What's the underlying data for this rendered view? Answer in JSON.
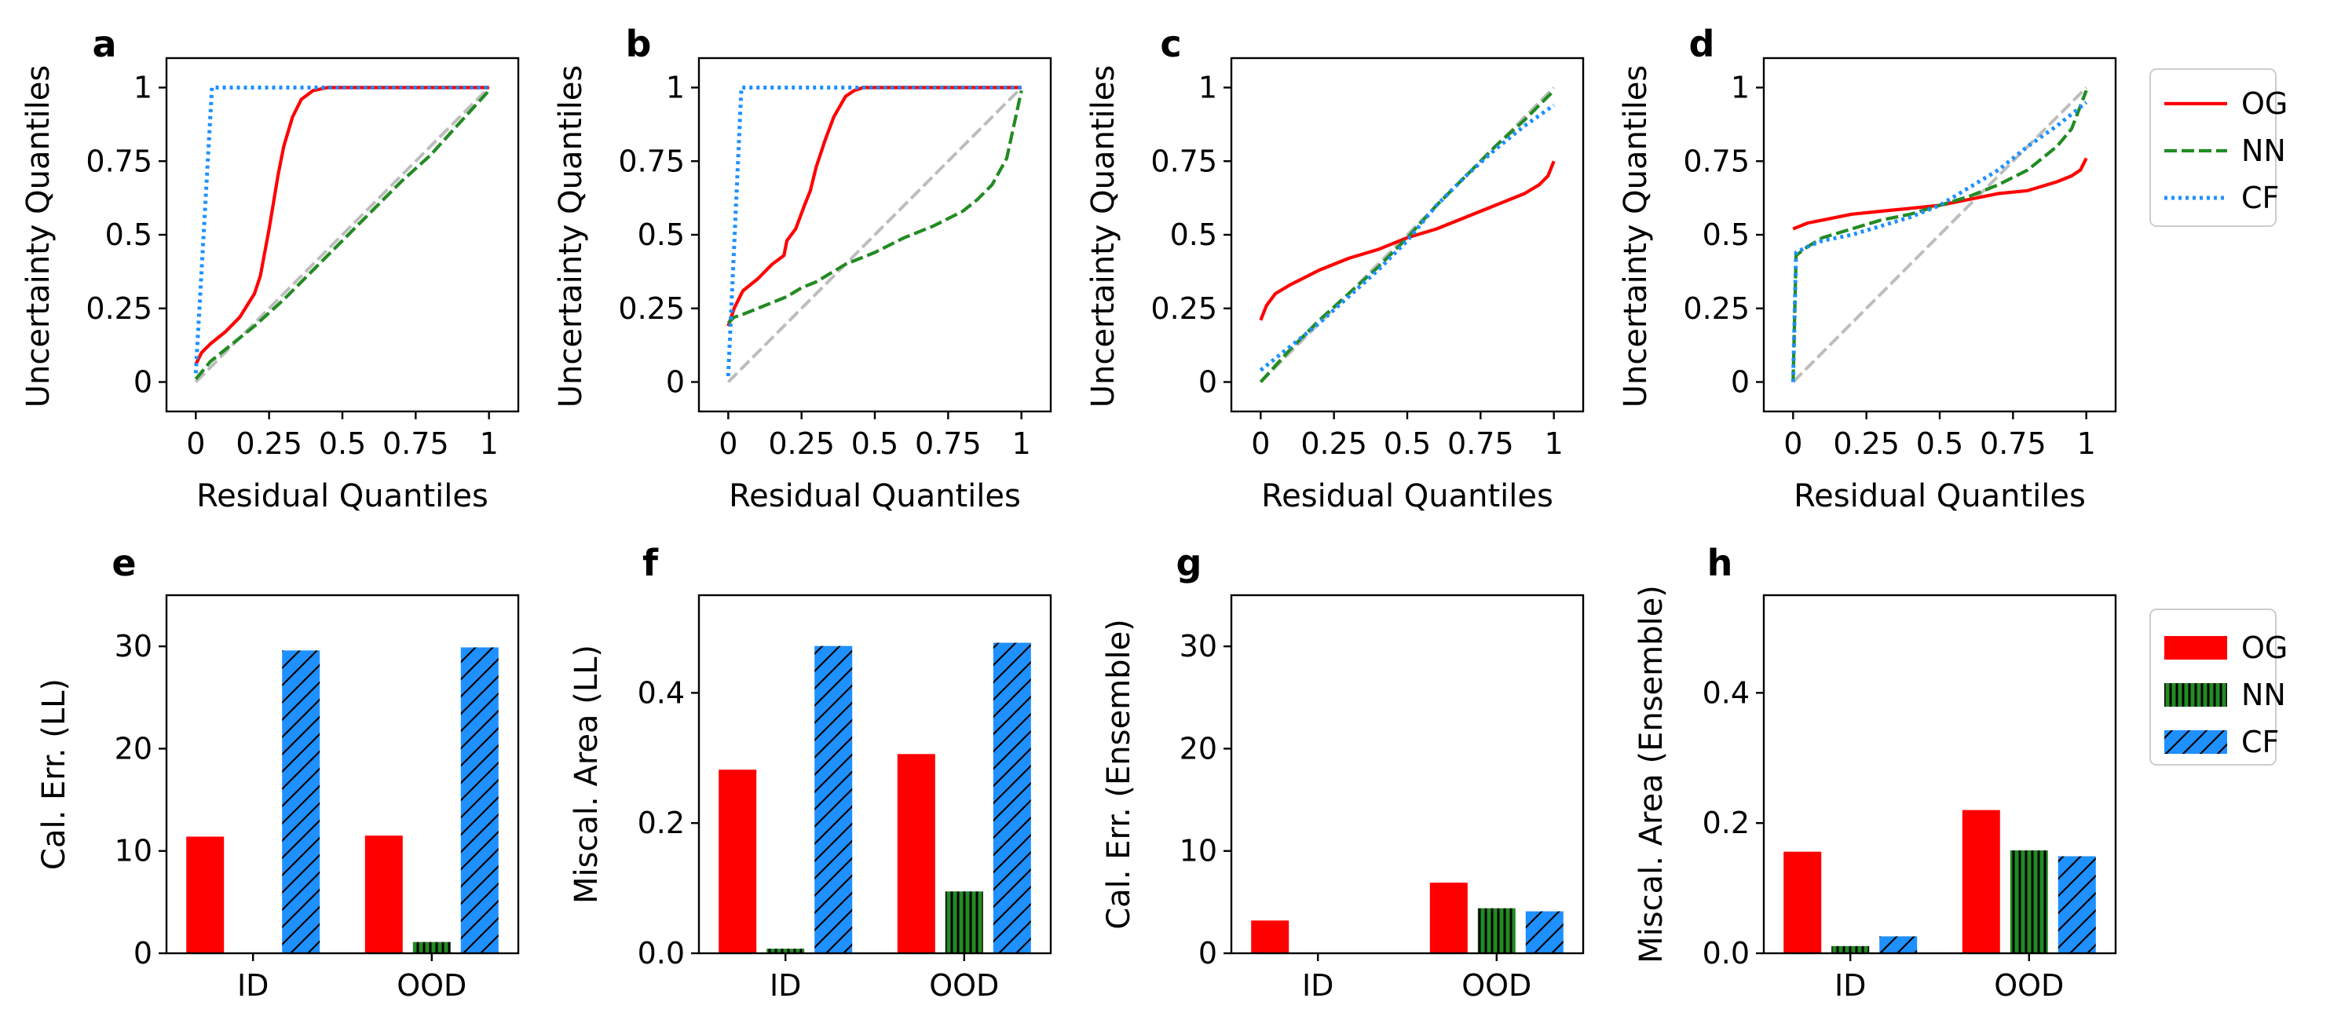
{
  "colors": {
    "OG": "#ff0000",
    "NN": "#228b22",
    "CF": "#1e90ff",
    "diagonal": "#bdbdbd"
  },
  "chart_data": [
    {
      "panel": "a",
      "type": "line",
      "xlabel": "Residual Quantiles",
      "ylabel": "Uncertainty Quantiles",
      "xlim": [
        -0.1,
        1.1
      ],
      "ylim": [
        -0.1,
        1.1
      ],
      "xticks": [
        0,
        0.25,
        0.5,
        0.75,
        1
      ],
      "xtick_labels": [
        "0",
        "0.25",
        "0.5",
        "0.75",
        "1"
      ],
      "yticks": [
        0,
        0.25,
        0.5,
        0.75,
        1
      ],
      "ytick_labels": [
        "0",
        "0.25",
        "0.5",
        "0.75",
        "1"
      ],
      "series": [
        {
          "name": "diagonal",
          "style": "dashed",
          "x": [
            0,
            1
          ],
          "y": [
            0,
            1
          ]
        },
        {
          "name": "OG",
          "style": "solid",
          "x": [
            0,
            0.02,
            0.05,
            0.1,
            0.15,
            0.2,
            0.22,
            0.25,
            0.28,
            0.3,
            0.33,
            0.36,
            0.4,
            0.45,
            0.5,
            0.6,
            0.8,
            1.0
          ],
          "y": [
            0.06,
            0.1,
            0.13,
            0.17,
            0.22,
            0.3,
            0.36,
            0.52,
            0.7,
            0.8,
            0.9,
            0.96,
            0.99,
            1.0,
            1.0,
            1.0,
            1.0,
            1.0
          ]
        },
        {
          "name": "NN",
          "style": "dashed",
          "x": [
            0,
            0.05,
            0.1,
            0.2,
            0.3,
            0.4,
            0.5,
            0.6,
            0.7,
            0.8,
            0.9,
            1.0
          ],
          "y": [
            0.01,
            0.07,
            0.11,
            0.19,
            0.28,
            0.38,
            0.48,
            0.58,
            0.68,
            0.77,
            0.88,
            0.99
          ]
        },
        {
          "name": "CF",
          "style": "dotted",
          "x": [
            0,
            0.055,
            0.1,
            0.5,
            1.0
          ],
          "y": [
            0.03,
            1.0,
            1.0,
            1.0,
            1.0
          ]
        }
      ]
    },
    {
      "panel": "b",
      "type": "line",
      "xlabel": "Residual Quantiles",
      "ylabel": "Uncertainty Quantiles",
      "xlim": [
        -0.1,
        1.1
      ],
      "ylim": [
        -0.1,
        1.1
      ],
      "xticks": [
        0,
        0.25,
        0.5,
        0.75,
        1
      ],
      "xtick_labels": [
        "0",
        "0.25",
        "0.5",
        "0.75",
        "1"
      ],
      "yticks": [
        0,
        0.25,
        0.5,
        0.75,
        1
      ],
      "ytick_labels": [
        "0",
        "0.25",
        "0.5",
        "0.75",
        "1"
      ],
      "series": [
        {
          "name": "diagonal",
          "style": "dashed",
          "x": [
            0,
            1
          ],
          "y": [
            0,
            1
          ]
        },
        {
          "name": "OG",
          "style": "solid",
          "x": [
            0,
            0.02,
            0.05,
            0.1,
            0.15,
            0.19,
            0.2,
            0.23,
            0.26,
            0.28,
            0.3,
            0.33,
            0.36,
            0.4,
            0.43,
            0.46,
            0.5,
            0.6,
            0.8,
            1.0
          ],
          "y": [
            0.19,
            0.25,
            0.31,
            0.35,
            0.4,
            0.43,
            0.48,
            0.52,
            0.6,
            0.65,
            0.73,
            0.82,
            0.9,
            0.97,
            0.99,
            1.0,
            1.0,
            1.0,
            1.0,
            1.0
          ]
        },
        {
          "name": "NN",
          "style": "dashed",
          "x": [
            0,
            0.02,
            0.05,
            0.1,
            0.15,
            0.2,
            0.25,
            0.3,
            0.4,
            0.5,
            0.6,
            0.7,
            0.8,
            0.85,
            0.9,
            0.95,
            1.0
          ],
          "y": [
            0.2,
            0.22,
            0.23,
            0.25,
            0.27,
            0.29,
            0.32,
            0.34,
            0.4,
            0.44,
            0.49,
            0.53,
            0.58,
            0.62,
            0.67,
            0.76,
            0.99
          ]
        },
        {
          "name": "CF",
          "style": "dotted",
          "x": [
            0,
            0.045,
            0.1,
            0.5,
            1.0
          ],
          "y": [
            0.02,
            1.0,
            1.0,
            1.0,
            1.0
          ]
        }
      ]
    },
    {
      "panel": "c",
      "type": "line",
      "xlabel": "Residual Quantiles",
      "ylabel": "Uncertainty Quantiles",
      "xlim": [
        -0.1,
        1.1
      ],
      "ylim": [
        -0.1,
        1.1
      ],
      "xticks": [
        0,
        0.25,
        0.5,
        0.75,
        1
      ],
      "xtick_labels": [
        "0",
        "0.25",
        "0.5",
        "0.75",
        "1"
      ],
      "yticks": [
        0,
        0.25,
        0.5,
        0.75,
        1
      ],
      "ytick_labels": [
        "0",
        "0.25",
        "0.5",
        "0.75",
        "1"
      ],
      "series": [
        {
          "name": "diagonal",
          "style": "dashed",
          "x": [
            0,
            1
          ],
          "y": [
            0,
            1
          ]
        },
        {
          "name": "OG",
          "style": "solid",
          "x": [
            0,
            0.02,
            0.05,
            0.1,
            0.2,
            0.3,
            0.4,
            0.5,
            0.6,
            0.7,
            0.8,
            0.9,
            0.95,
            0.98,
            1.0
          ],
          "y": [
            0.21,
            0.26,
            0.3,
            0.33,
            0.38,
            0.42,
            0.45,
            0.49,
            0.52,
            0.56,
            0.6,
            0.64,
            0.67,
            0.7,
            0.75
          ]
        },
        {
          "name": "NN",
          "style": "dashed",
          "x": [
            0,
            0.1,
            0.2,
            0.3,
            0.4,
            0.5,
            0.6,
            0.7,
            0.8,
            0.9,
            1.0
          ],
          "y": [
            0.0,
            0.11,
            0.21,
            0.3,
            0.39,
            0.49,
            0.6,
            0.7,
            0.8,
            0.89,
            0.99
          ]
        },
        {
          "name": "CF",
          "style": "dotted",
          "x": [
            0,
            0.1,
            0.2,
            0.3,
            0.4,
            0.5,
            0.6,
            0.7,
            0.8,
            0.9,
            1.0
          ],
          "y": [
            0.04,
            0.12,
            0.2,
            0.29,
            0.38,
            0.48,
            0.6,
            0.7,
            0.79,
            0.87,
            0.94
          ]
        }
      ]
    },
    {
      "panel": "d",
      "type": "line",
      "xlabel": "Residual Quantiles",
      "ylabel": "Uncertainty Quantiles",
      "xlim": [
        -0.1,
        1.1
      ],
      "ylim": [
        -0.1,
        1.1
      ],
      "xticks": [
        0,
        0.25,
        0.5,
        0.75,
        1
      ],
      "xtick_labels": [
        "0",
        "0.25",
        "0.5",
        "0.75",
        "1"
      ],
      "yticks": [
        0,
        0.25,
        0.5,
        0.75,
        1
      ],
      "ytick_labels": [
        "0",
        "0.25",
        "0.5",
        "0.75",
        "1"
      ],
      "series": [
        {
          "name": "diagonal",
          "style": "dashed",
          "x": [
            0,
            1
          ],
          "y": [
            0,
            1
          ]
        },
        {
          "name": "OG",
          "style": "solid",
          "x": [
            0,
            0.05,
            0.1,
            0.2,
            0.3,
            0.4,
            0.5,
            0.6,
            0.7,
            0.8,
            0.9,
            0.95,
            0.98,
            1.0
          ],
          "y": [
            0.52,
            0.54,
            0.55,
            0.57,
            0.58,
            0.59,
            0.6,
            0.62,
            0.64,
            0.65,
            0.68,
            0.7,
            0.72,
            0.76
          ]
        },
        {
          "name": "NN",
          "style": "dashed",
          "x": [
            0,
            0.01,
            0.05,
            0.1,
            0.2,
            0.3,
            0.4,
            0.5,
            0.6,
            0.7,
            0.8,
            0.9,
            0.95,
            1.0
          ],
          "y": [
            0.0,
            0.43,
            0.46,
            0.49,
            0.52,
            0.55,
            0.57,
            0.6,
            0.63,
            0.67,
            0.72,
            0.8,
            0.86,
            0.99
          ]
        },
        {
          "name": "CF",
          "style": "dotted",
          "x": [
            0,
            0.01,
            0.05,
            0.1,
            0.2,
            0.3,
            0.4,
            0.5,
            0.6,
            0.7,
            0.8,
            0.9,
            0.95,
            1.0
          ],
          "y": [
            0.0,
            0.44,
            0.46,
            0.48,
            0.5,
            0.53,
            0.56,
            0.6,
            0.66,
            0.72,
            0.8,
            0.87,
            0.91,
            0.95
          ]
        }
      ]
    },
    {
      "panel": "e",
      "type": "bar",
      "categories": [
        "ID",
        "OOD"
      ],
      "ylabel": "Cal. Err. (LL)",
      "ylim": [
        0,
        35
      ],
      "yticks": [
        0,
        10,
        20,
        30
      ],
      "ytick_labels": [
        "0",
        "10",
        "20",
        "30"
      ],
      "series": [
        {
          "name": "OG",
          "hatch": "none",
          "values": [
            11.4,
            11.5
          ]
        },
        {
          "name": "NN",
          "hatch": "vertical",
          "values": [
            0.0,
            1.1
          ]
        },
        {
          "name": "CF",
          "hatch": "diagonal",
          "values": [
            29.6,
            29.9
          ]
        }
      ]
    },
    {
      "panel": "f",
      "type": "bar",
      "categories": [
        "ID",
        "OOD"
      ],
      "ylabel": "Miscal. Area (LL)",
      "ylim": [
        0,
        0.55
      ],
      "yticks": [
        0,
        0.2,
        0.4
      ],
      "ytick_labels": [
        "0.0",
        "0.2",
        "0.4"
      ],
      "series": [
        {
          "name": "OG",
          "hatch": "none",
          "values": [
            0.282,
            0.306
          ]
        },
        {
          "name": "NN",
          "hatch": "vertical",
          "values": [
            0.007,
            0.095
          ]
        },
        {
          "name": "CF",
          "hatch": "diagonal",
          "values": [
            0.472,
            0.477
          ]
        }
      ]
    },
    {
      "panel": "g",
      "type": "bar",
      "categories": [
        "ID",
        "OOD"
      ],
      "ylabel": "Cal. Err. (Ensemble)",
      "ylim": [
        0,
        35
      ],
      "yticks": [
        0,
        10,
        20,
        30
      ],
      "ytick_labels": [
        "0",
        "10",
        "20",
        "30"
      ],
      "series": [
        {
          "name": "OG",
          "hatch": "none",
          "values": [
            3.2,
            6.9
          ]
        },
        {
          "name": "NN",
          "hatch": "vertical",
          "values": [
            0.0,
            4.4
          ]
        },
        {
          "name": "CF",
          "hatch": "diagonal",
          "values": [
            0.0,
            4.1
          ]
        }
      ]
    },
    {
      "panel": "h",
      "type": "bar",
      "categories": [
        "ID",
        "OOD"
      ],
      "ylabel": "Miscal. Area (Ensemble)",
      "ylim": [
        0,
        0.55
      ],
      "yticks": [
        0,
        0.2,
        0.4
      ],
      "ytick_labels": [
        "0.0",
        "0.2",
        "0.4"
      ],
      "series": [
        {
          "name": "OG",
          "hatch": "none",
          "values": [
            0.156,
            0.22
          ]
        },
        {
          "name": "NN",
          "hatch": "vertical",
          "values": [
            0.011,
            0.158
          ]
        },
        {
          "name": "CF",
          "hatch": "diagonal",
          "values": [
            0.026,
            0.149
          ]
        }
      ]
    }
  ],
  "legends": {
    "lines": [
      {
        "name": "OG",
        "style": "solid"
      },
      {
        "name": "NN",
        "style": "dashed"
      },
      {
        "name": "CF",
        "style": "dotted"
      }
    ],
    "bars": [
      {
        "name": "OG",
        "hatch": "none"
      },
      {
        "name": "NN",
        "hatch": "vertical"
      },
      {
        "name": "CF",
        "hatch": "diagonal"
      }
    ]
  }
}
